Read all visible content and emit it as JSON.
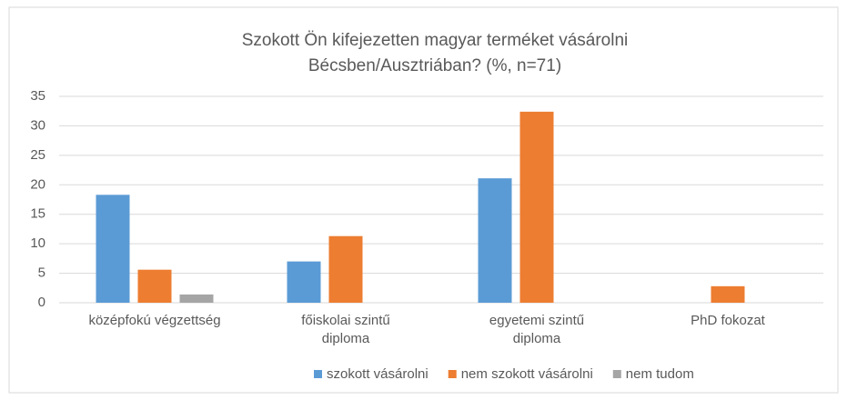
{
  "chart_data": {
    "type": "bar",
    "title": "Szokott Ön kifejezetten magyar terméket vásárolni",
    "subtitle": "Bécsben/Ausztriában? (%, n=71)",
    "categories": [
      "középfokú végzettség",
      "főiskolai szintű\ndiploma",
      "egyetemi szintű\ndiploma",
      "PhD fokozat"
    ],
    "series": [
      {
        "name": "szokott vásárolni",
        "color": "#5b9bd5",
        "values": [
          18.3,
          7.0,
          21.1,
          null
        ]
      },
      {
        "name": "nem szokott vásárolni",
        "color": "#ed7d31",
        "values": [
          5.6,
          11.3,
          32.4,
          2.8
        ]
      },
      {
        "name": "nem tudom",
        "color": "#a5a5a5",
        "values": [
          1.4,
          null,
          null,
          null
        ]
      }
    ],
    "ylim": [
      0,
      35
    ],
    "yticks": [
      0,
      5,
      10,
      15,
      20,
      25,
      30,
      35
    ],
    "grid": true,
    "legend": "bottom"
  }
}
